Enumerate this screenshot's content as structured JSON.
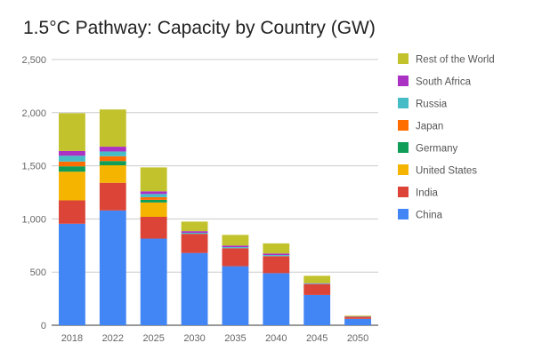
{
  "chart_data": {
    "type": "bar",
    "stacked": true,
    "title": "1.5°C Pathway: Capacity by Country (GW)",
    "xlabel": "",
    "ylabel": "",
    "ylim": [
      0,
      2500
    ],
    "yticks": [
      0,
      500,
      1000,
      1500,
      2000,
      2500
    ],
    "ytick_labels": [
      "0",
      "500",
      "1,000",
      "1,500",
      "2,000",
      "2,500"
    ],
    "grid": true,
    "legend_position": "right",
    "categories": [
      "2018",
      "2022",
      "2025",
      "2030",
      "2035",
      "2040",
      "2045",
      "2050"
    ],
    "series": [
      {
        "name": "China",
        "color": "#4285f4",
        "values": [
          955,
          1080,
          815,
          680,
          555,
          490,
          285,
          60
        ]
      },
      {
        "name": "India",
        "color": "#db4437",
        "values": [
          220,
          260,
          205,
          180,
          170,
          160,
          100,
          15
        ]
      },
      {
        "name": "United States",
        "color": "#f4b400",
        "values": [
          270,
          165,
          135,
          0,
          0,
          0,
          0,
          0
        ]
      },
      {
        "name": "Germany",
        "color": "#0f9d58",
        "values": [
          50,
          40,
          25,
          0,
          0,
          0,
          0,
          0
        ]
      },
      {
        "name": "Japan",
        "color": "#ff6d00",
        "values": [
          45,
          45,
          25,
          0,
          0,
          0,
          0,
          0
        ]
      },
      {
        "name": "Russia",
        "color": "#46bdc6",
        "values": [
          55,
          45,
          30,
          10,
          10,
          10,
          5,
          0
        ]
      },
      {
        "name": "South Africa",
        "color": "#ab30c4",
        "values": [
          45,
          45,
          25,
          15,
          15,
          15,
          5,
          5
        ]
      },
      {
        "name": "Rest of the World",
        "color": "#c2c22c",
        "values": [
          355,
          350,
          225,
          90,
          100,
          95,
          70,
          10
        ]
      }
    ]
  }
}
